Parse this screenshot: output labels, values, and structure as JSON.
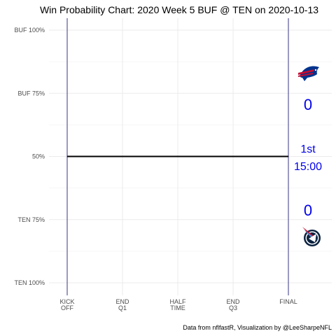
{
  "chart_data": {
    "type": "line",
    "title": "Win Probability Chart: 2020 Week 5 BUF @ TEN on 2020-10-13",
    "caption": "Data from nflfastR, Visualization by @LeeSharpeNFL",
    "y_tick_labels": [
      "BUF 100%",
      "BUF 75%",
      "50%",
      "TEN 75%",
      "TEN 100%"
    ],
    "y_tick_values": [
      1.0,
      0.75,
      0.5,
      0.25,
      0.0
    ],
    "x_tick_labels": [
      [
        "KICK",
        "OFF"
      ],
      [
        "END",
        "Q1"
      ],
      [
        "HALF",
        "TIME"
      ],
      [
        "END",
        "Q3"
      ],
      [
        "FINAL"
      ]
    ],
    "x_tick_values": [
      0,
      15,
      30,
      45,
      60
    ],
    "xlim": [
      0,
      60
    ],
    "ylim": [
      0,
      1
    ],
    "grid": true,
    "series": [
      {
        "x": [
          0,
          60
        ],
        "y": [
          0.5,
          0.5
        ],
        "color": "#000000"
      }
    ],
    "away_team": "BUF",
    "home_team": "TEN",
    "away_score": "0",
    "home_score": "0",
    "quarter": "1st",
    "clock": "15:00",
    "text_color": "#0000ee",
    "bound_line_color": "#23237a",
    "logos": [
      "bills-logo-icon",
      "titans-logo-icon"
    ]
  }
}
